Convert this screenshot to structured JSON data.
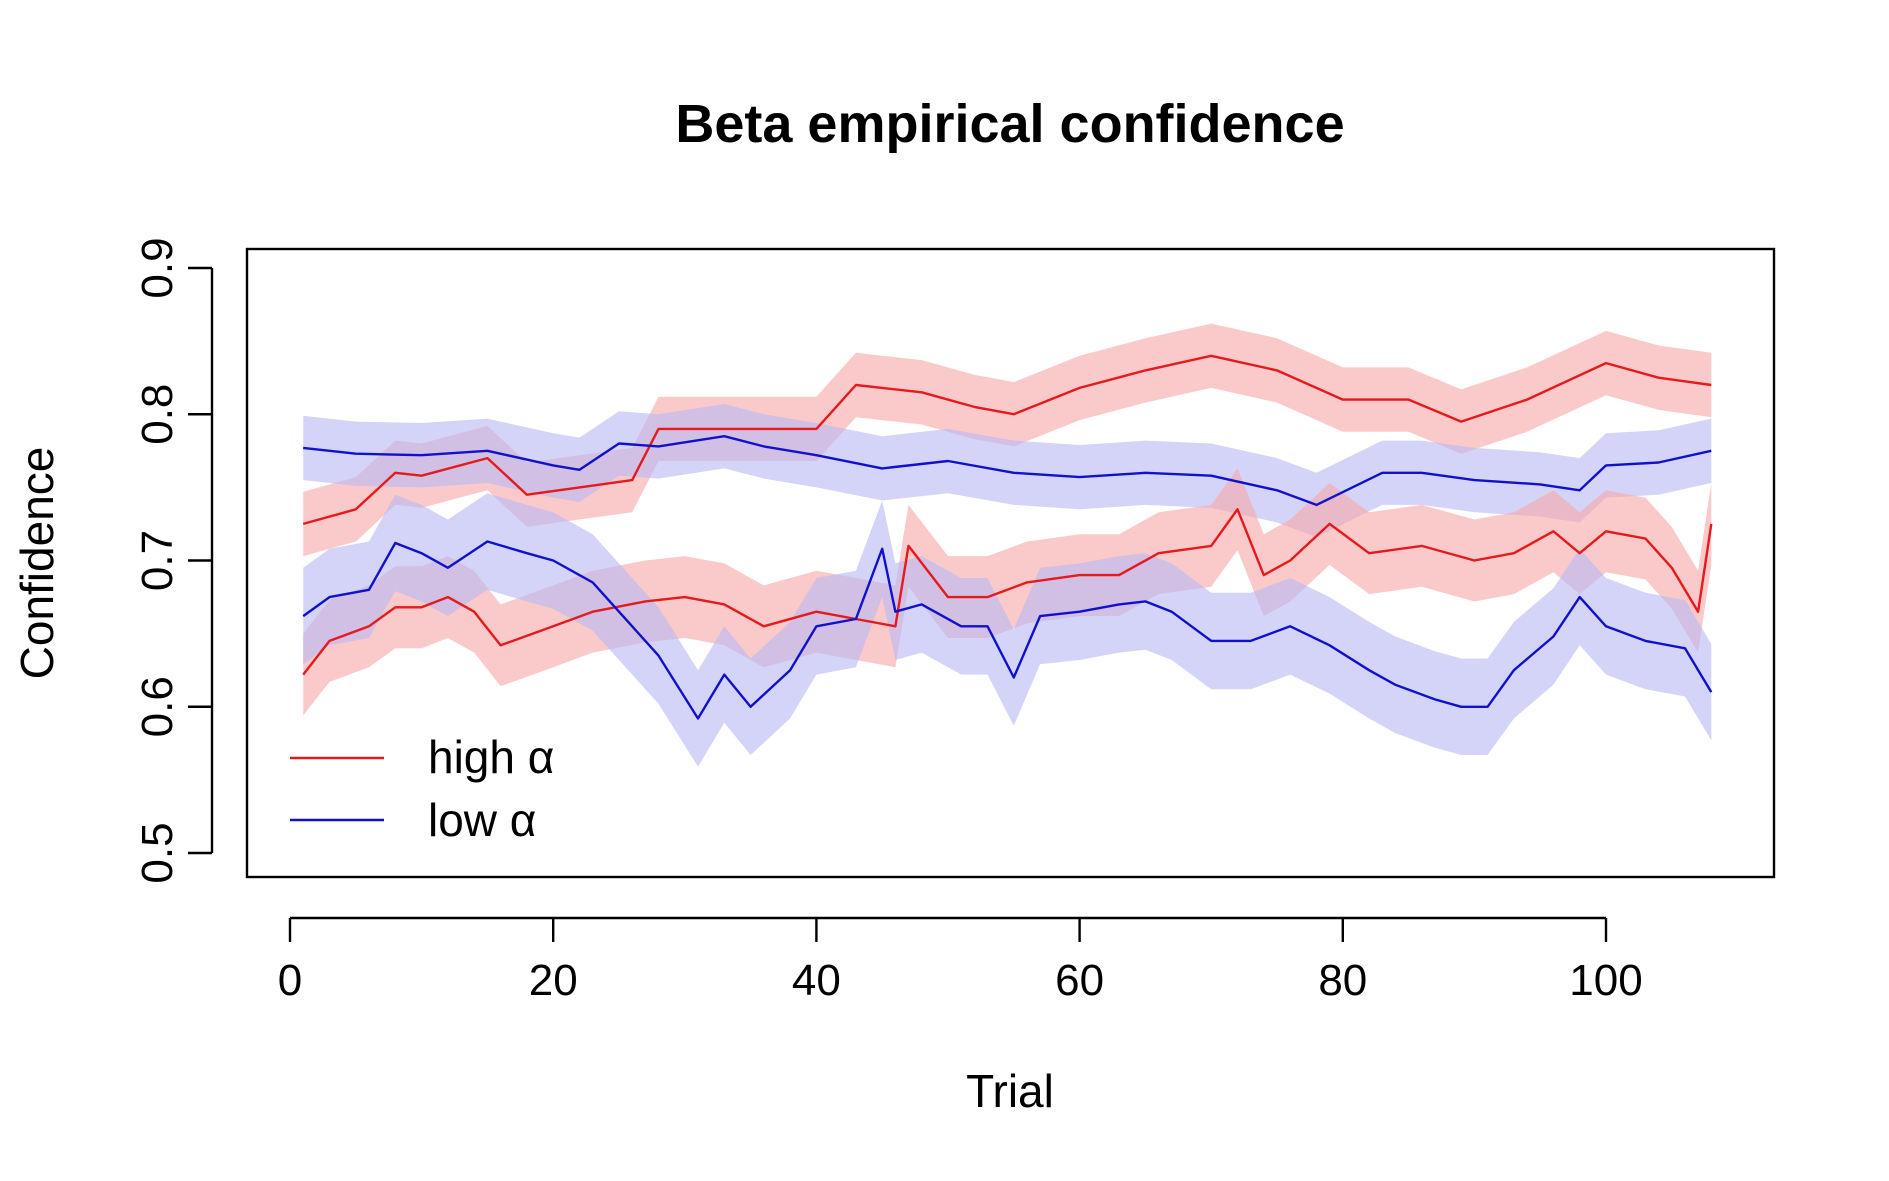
{
  "chart_data": {
    "type": "line",
    "title": "Beta empirical confidence",
    "xlabel": "Trial",
    "ylabel": "Confidence",
    "xlim": [
      1,
      108
    ],
    "ylim": [
      0.5,
      0.9
    ],
    "x_ticks": [
      0,
      20,
      40,
      60,
      80,
      100
    ],
    "y_ticks": [
      0.5,
      0.6,
      0.7,
      0.8,
      0.9
    ],
    "x_tick_labels": [
      "0",
      "20",
      "40",
      "60",
      "80",
      "100"
    ],
    "y_tick_labels": [
      "0.5",
      "0.6",
      "0.7",
      "0.8",
      "0.9"
    ],
    "grid": false,
    "legend_position": "bottom-left",
    "legend": [
      {
        "label": "high α",
        "color": "#e41a1c"
      },
      {
        "label": "low α",
        "color": "#1111cc"
      }
    ],
    "band_half_width": {
      "high_upper": 0.022,
      "low_upper": 0.022,
      "high_lower": 0.028,
      "low_lower": 0.033
    },
    "series": [
      {
        "name": "high α",
        "group": "upper",
        "color": "#e41a1c",
        "band_color": "#f7a7a7",
        "x": [
          1,
          5,
          8,
          10,
          15,
          18,
          22,
          26,
          28,
          32,
          36,
          40,
          43,
          48,
          52,
          55,
          60,
          65,
          70,
          75,
          80,
          85,
          89,
          94,
          100,
          104,
          108
        ],
        "values": [
          0.725,
          0.735,
          0.76,
          0.758,
          0.77,
          0.745,
          0.75,
          0.755,
          0.79,
          0.79,
          0.79,
          0.79,
          0.82,
          0.815,
          0.805,
          0.8,
          0.818,
          0.83,
          0.84,
          0.83,
          0.81,
          0.81,
          0.795,
          0.81,
          0.835,
          0.825,
          0.82
        ]
      },
      {
        "name": "low α",
        "group": "upper",
        "color": "#1111cc",
        "band_color": "#b8b8f5",
        "x": [
          1,
          5,
          10,
          15,
          20,
          22,
          25,
          28,
          33,
          36,
          40,
          45,
          50,
          55,
          60,
          65,
          70,
          75,
          78,
          83,
          86,
          90,
          95,
          98,
          100,
          104,
          108
        ],
        "values": [
          0.777,
          0.773,
          0.772,
          0.775,
          0.765,
          0.762,
          0.78,
          0.778,
          0.785,
          0.778,
          0.772,
          0.763,
          0.768,
          0.76,
          0.757,
          0.76,
          0.758,
          0.748,
          0.738,
          0.76,
          0.76,
          0.755,
          0.752,
          0.748,
          0.765,
          0.767,
          0.775
        ]
      },
      {
        "name": "high α",
        "group": "lower",
        "color": "#e41a1c",
        "band_color": "#f7a7a7",
        "x": [
          1,
          3,
          6,
          8,
          10,
          12,
          14,
          16,
          20,
          23,
          27,
          30,
          33,
          36,
          40,
          43,
          46,
          47,
          50,
          53,
          56,
          60,
          63,
          66,
          70,
          72,
          74,
          76,
          79,
          82,
          86,
          90,
          93,
          96,
          98,
          100,
          103,
          105,
          107,
          108
        ],
        "values": [
          0.622,
          0.645,
          0.655,
          0.668,
          0.668,
          0.675,
          0.665,
          0.642,
          0.655,
          0.665,
          0.672,
          0.675,
          0.67,
          0.655,
          0.665,
          0.66,
          0.655,
          0.71,
          0.675,
          0.675,
          0.685,
          0.69,
          0.69,
          0.705,
          0.71,
          0.735,
          0.69,
          0.7,
          0.725,
          0.705,
          0.71,
          0.7,
          0.705,
          0.72,
          0.705,
          0.72,
          0.715,
          0.695,
          0.665,
          0.725
        ]
      },
      {
        "name": "low α",
        "group": "lower",
        "color": "#1111cc",
        "band_color": "#b8b8f5",
        "x": [
          1,
          3,
          6,
          8,
          10,
          12,
          15,
          18,
          20,
          23,
          25,
          28,
          31,
          33,
          35,
          38,
          40,
          43,
          45,
          46,
          48,
          51,
          53,
          55,
          57,
          60,
          63,
          65,
          67,
          70,
          73,
          76,
          79,
          82,
          84,
          87,
          89,
          91,
          93,
          96,
          98,
          100,
          103,
          106,
          108
        ],
        "values": [
          0.662,
          0.675,
          0.68,
          0.712,
          0.705,
          0.695,
          0.713,
          0.705,
          0.7,
          0.685,
          0.665,
          0.635,
          0.592,
          0.622,
          0.6,
          0.625,
          0.655,
          0.66,
          0.708,
          0.665,
          0.67,
          0.655,
          0.655,
          0.62,
          0.662,
          0.665,
          0.67,
          0.672,
          0.665,
          0.645,
          0.645,
          0.655,
          0.642,
          0.625,
          0.615,
          0.605,
          0.6,
          0.6,
          0.625,
          0.648,
          0.675,
          0.655,
          0.645,
          0.64,
          0.61
        ]
      }
    ]
  }
}
